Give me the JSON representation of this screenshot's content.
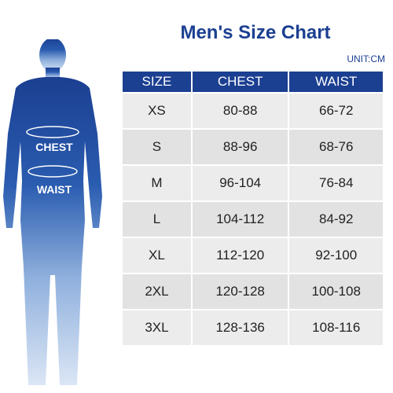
{
  "title": "Men's Size Chart",
  "unit": "UNIT:CM",
  "figure": {
    "chest_label": "CHEST",
    "waist_label": "WAIST",
    "color_top": "#1b3f91",
    "color_bottom": "#dbe6f5"
  },
  "table": {
    "headers": [
      "SIZE",
      "CHEST",
      "WAIST"
    ],
    "rows": [
      [
        "XS",
        "80-88",
        "66-72"
      ],
      [
        "S",
        "88-96",
        "68-76"
      ],
      [
        "M",
        "96-104",
        "76-84"
      ],
      [
        "L",
        "104-112",
        "84-92"
      ],
      [
        "XL",
        "112-120",
        "92-100"
      ],
      [
        "2XL",
        "120-128",
        "100-108"
      ],
      [
        "3XL",
        "128-136",
        "108-116"
      ]
    ]
  },
  "colors": {
    "header_bg": "#1b3f91",
    "row_light": "#ececec",
    "row_dark": "#e2e2e2",
    "title": "#1b3f91"
  }
}
